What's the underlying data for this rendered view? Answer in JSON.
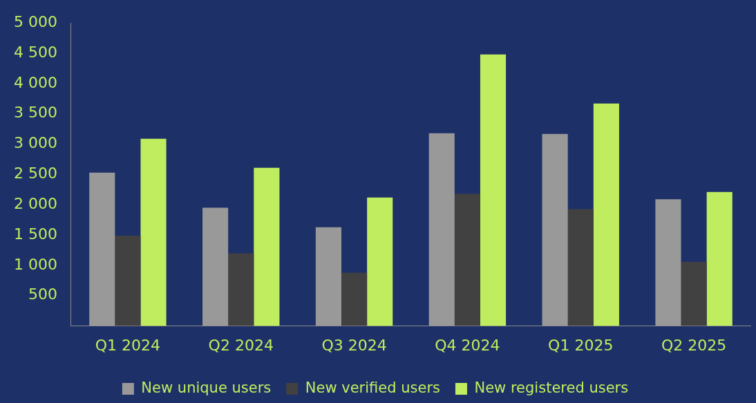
{
  "chart_data": {
    "type": "bar",
    "categories": [
      "Q1 2024",
      "Q2 2024",
      "Q3 2024",
      "Q4 2024",
      "Q1 2025",
      "Q2 2025"
    ],
    "series": [
      {
        "name": "New unique users",
        "color": "#999999",
        "values": [
          2530,
          1950,
          1630,
          3180,
          3170,
          2090
        ]
      },
      {
        "name": "New verified users",
        "color": "#414141",
        "values": [
          1490,
          1200,
          880,
          2180,
          1930,
          1060
        ]
      },
      {
        "name": "New registered users",
        "color": "#c0ed5f",
        "values": [
          3090,
          2610,
          2120,
          4480,
          3670,
          2210
        ]
      }
    ],
    "ylim": [
      0,
      5000
    ],
    "yticks": [
      {
        "value": 500,
        "label": "500"
      },
      {
        "value": 1000,
        "label": "1 000"
      },
      {
        "value": 1500,
        "label": "1 500"
      },
      {
        "value": 2000,
        "label": "2 000"
      },
      {
        "value": 2500,
        "label": "2 500"
      },
      {
        "value": 3000,
        "label": "3 000"
      },
      {
        "value": 3500,
        "label": "3 500"
      },
      {
        "value": 4000,
        "label": "4 000"
      },
      {
        "value": 4500,
        "label": "4 500"
      },
      {
        "value": 5000,
        "label": "5 000"
      }
    ],
    "grid": false,
    "legend": "bottom"
  }
}
